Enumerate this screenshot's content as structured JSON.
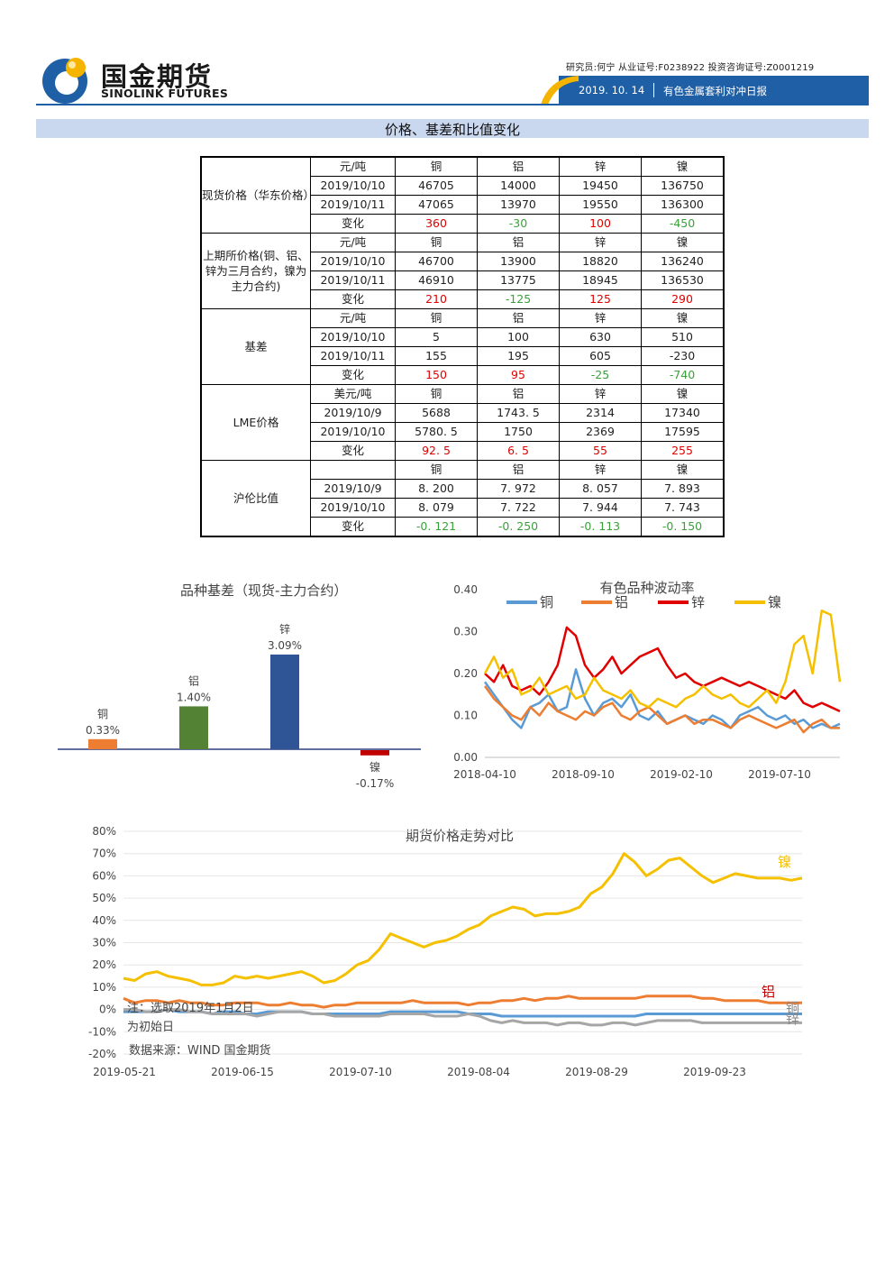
{
  "header": {
    "brand_cn": "国金期货",
    "brand_en": "SINOLINK FUTURES",
    "meta": "研究员:何宁  从业证号:F0238922  投资咨询证号:Z0001219",
    "date": "2019. 10. 14",
    "report_title": "有色金属套利对冲日报"
  },
  "section_title": "价格、基差和比值变化",
  "table": {
    "groups": [
      {
        "label": "现货价格（华东价格）",
        "rows": [
          {
            "c1": "元/吨",
            "v": [
              "铜",
              "铝",
              "锌",
              "镍"
            ]
          },
          {
            "c1": "2019/10/10",
            "v": [
              "46705",
              "14000",
              "19450",
              "136750"
            ]
          },
          {
            "c1": "2019/10/11",
            "v": [
              "47065",
              "13970",
              "19550",
              "136300"
            ]
          },
          {
            "c1": "变化",
            "v": [
              "360",
              "-30",
              "100",
              "-450"
            ]
          }
        ]
      },
      {
        "label": "上期所价格(铜、铝、锌为三月合约，镍为主力合约)",
        "rows": [
          {
            "c1": "元/吨",
            "v": [
              "铜",
              "铝",
              "锌",
              "镍"
            ]
          },
          {
            "c1": "2019/10/10",
            "v": [
              "46700",
              "13900",
              "18820",
              "136240"
            ]
          },
          {
            "c1": "2019/10/11",
            "v": [
              "46910",
              "13775",
              "18945",
              "136530"
            ]
          },
          {
            "c1": "变化",
            "v": [
              "210",
              "-125",
              "125",
              "290"
            ]
          }
        ]
      },
      {
        "label": "基差",
        "rows": [
          {
            "c1": "元/吨",
            "v": [
              "铜",
              "铝",
              "锌",
              "镍"
            ]
          },
          {
            "c1": "2019/10/10",
            "v": [
              "5",
              "100",
              "630",
              "510"
            ]
          },
          {
            "c1": "2019/10/11",
            "v": [
              "155",
              "195",
              "605",
              "-230"
            ]
          },
          {
            "c1": "变化",
            "v": [
              "150",
              "95",
              "-25",
              "-740"
            ]
          }
        ]
      },
      {
        "label": "LME价格",
        "rows": [
          {
            "c1": "美元/吨",
            "v": [
              "铜",
              "铝",
              "锌",
              "镍"
            ]
          },
          {
            "c1": "2019/10/9",
            "v": [
              "5688",
              "1743. 5",
              "2314",
              "17340"
            ]
          },
          {
            "c1": "2019/10/10",
            "v": [
              "5780. 5",
              "1750",
              "2369",
              "17595"
            ]
          },
          {
            "c1": "变化",
            "v": [
              "92. 5",
              "6. 5",
              "55",
              "255"
            ]
          }
        ]
      },
      {
        "label": "沪伦比值",
        "rows": [
          {
            "c1": "",
            "v": [
              "铜",
              "铝",
              "锌",
              "镍"
            ]
          },
          {
            "c1": "2019/10/9",
            "v": [
              "8. 200",
              "7. 972",
              "8. 057",
              "7. 893"
            ]
          },
          {
            "c1": "2019/10/10",
            "v": [
              "8. 079",
              "7. 722",
              "7. 944",
              "7. 743"
            ]
          },
          {
            "c1": "变化",
            "v": [
              "-0. 121",
              "-0. 250",
              "-0. 113",
              "-0. 150"
            ]
          }
        ]
      }
    ]
  },
  "chart_data": [
    {
      "type": "bar",
      "title": "品种基差（现货-主力合约）",
      "categories": [
        "铜",
        "铝",
        "锌",
        "镍"
      ],
      "values": [
        0.33,
        1.4,
        3.09,
        -0.17
      ],
      "value_labels": [
        "0.33%",
        "1.40%",
        "3.09%",
        "-0.17%"
      ],
      "colors": [
        "#ed7d31",
        "#548235",
        "#2f5597",
        "#c00000"
      ]
    },
    {
      "type": "line",
      "title": "有色品种波动率",
      "x_ticks": [
        "2018-04-10",
        "2018-09-10",
        "2019-02-10",
        "2019-07-10"
      ],
      "y_ticks": [
        "0.40",
        "0.30",
        "0.20",
        "0.10",
        "0.00"
      ],
      "ylim": [
        0,
        0.4
      ],
      "legend_placement": "top",
      "series": [
        {
          "name": "铜",
          "color": "#5b9bd5",
          "values": [
            0.18,
            0.15,
            0.12,
            0.09,
            0.07,
            0.12,
            0.13,
            0.15,
            0.11,
            0.12,
            0.21,
            0.14,
            0.1,
            0.13,
            0.14,
            0.12,
            0.15,
            0.1,
            0.09,
            0.11,
            0.08,
            0.09,
            0.1,
            0.09,
            0.08,
            0.1,
            0.09,
            0.07,
            0.1,
            0.11,
            0.12,
            0.1,
            0.09,
            0.1,
            0.08,
            0.09,
            0.07,
            0.08,
            0.07,
            0.08
          ]
        },
        {
          "name": "铝",
          "color": "#ed7d31",
          "values": [
            0.17,
            0.14,
            0.12,
            0.1,
            0.09,
            0.12,
            0.1,
            0.13,
            0.11,
            0.1,
            0.09,
            0.11,
            0.1,
            0.12,
            0.13,
            0.1,
            0.09,
            0.11,
            0.12,
            0.1,
            0.08,
            0.09,
            0.1,
            0.08,
            0.09,
            0.09,
            0.08,
            0.07,
            0.09,
            0.1,
            0.09,
            0.08,
            0.07,
            0.08,
            0.09,
            0.06,
            0.08,
            0.09,
            0.07,
            0.07
          ]
        },
        {
          "name": "锌",
          "color": "#e00000",
          "values": [
            0.2,
            0.18,
            0.22,
            0.17,
            0.16,
            0.17,
            0.15,
            0.18,
            0.22,
            0.31,
            0.29,
            0.22,
            0.19,
            0.21,
            0.24,
            0.2,
            0.22,
            0.24,
            0.25,
            0.26,
            0.22,
            0.19,
            0.2,
            0.18,
            0.17,
            0.18,
            0.19,
            0.18,
            0.17,
            0.18,
            0.17,
            0.16,
            0.15,
            0.14,
            0.16,
            0.13,
            0.12,
            0.13,
            0.12,
            0.11
          ]
        },
        {
          "name": "镍",
          "color": "#f5c000",
          "values": [
            0.2,
            0.24,
            0.19,
            0.21,
            0.15,
            0.16,
            0.19,
            0.15,
            0.16,
            0.17,
            0.14,
            0.15,
            0.19,
            0.16,
            0.15,
            0.14,
            0.16,
            0.13,
            0.12,
            0.14,
            0.13,
            0.12,
            0.14,
            0.15,
            0.17,
            0.15,
            0.14,
            0.15,
            0.13,
            0.12,
            0.14,
            0.16,
            0.13,
            0.18,
            0.27,
            0.29,
            0.2,
            0.35,
            0.34,
            0.18
          ]
        }
      ]
    },
    {
      "type": "line",
      "title": "期货价格走势对比",
      "x_ticks": [
        "2019-05-21",
        "2019-06-15",
        "2019-07-10",
        "2019-08-04",
        "2019-08-29",
        "2019-09-23"
      ],
      "y_ticks": [
        "80%",
        "70%",
        "60%",
        "50%",
        "40%",
        "30%",
        "20%",
        "10%",
        "0%",
        "-10%",
        "-20%"
      ],
      "ylim": [
        -20,
        80
      ],
      "series": [
        {
          "name": "镍",
          "color": "#f5c000",
          "values": [
            14,
            13,
            16,
            17,
            15,
            14,
            13,
            11,
            11,
            12,
            15,
            14,
            15,
            14,
            15,
            16,
            17,
            15,
            12,
            13,
            16,
            20,
            22,
            27,
            34,
            32,
            30,
            28,
            30,
            31,
            33,
            36,
            38,
            42,
            44,
            46,
            45,
            42,
            43,
            43,
            44,
            46,
            52,
            55,
            61,
            70,
            66,
            60,
            63,
            67,
            68,
            64,
            60,
            57,
            59,
            61,
            60,
            59,
            59,
            59,
            58,
            59
          ]
        },
        {
          "name": "铝",
          "color": "#ed7d31",
          "values": [
            5,
            3,
            4,
            4,
            3,
            4,
            3,
            3,
            2,
            2,
            3,
            3,
            3,
            2,
            2,
            3,
            2,
            2,
            1,
            2,
            2,
            3,
            3,
            3,
            3,
            3,
            4,
            3,
            3,
            3,
            3,
            2,
            3,
            3,
            4,
            4,
            5,
            4,
            5,
            5,
            6,
            5,
            5,
            5,
            5,
            5,
            5,
            6,
            6,
            6,
            6,
            6,
            5,
            5,
            4,
            4,
            4,
            4,
            3,
            3,
            3,
            3
          ]
        },
        {
          "name": "铜",
          "color": "#5b9bd5",
          "values": [
            -1,
            -1,
            -1,
            -1,
            0,
            -1,
            -1,
            -1,
            -2,
            -1,
            -1,
            -2,
            -2,
            -1,
            -1,
            -1,
            -1,
            -2,
            -2,
            -2,
            -2,
            -2,
            -2,
            -2,
            -1,
            -1,
            -1,
            -1,
            -1,
            -1,
            -1,
            -2,
            -2,
            -2,
            -3,
            -3,
            -3,
            -3,
            -3,
            -3,
            -3,
            -3,
            -3,
            -3,
            -3,
            -3,
            -3,
            -2,
            -2,
            -2,
            -2,
            -2,
            -2,
            -2,
            -2,
            -2,
            -2,
            -2,
            -2,
            -2,
            -2,
            -2
          ]
        },
        {
          "name": "锌",
          "color": "#a6a6a6",
          "values": [
            0,
            0,
            -1,
            -1,
            0,
            0,
            -1,
            -1,
            -2,
            -2,
            -2,
            -2,
            -3,
            -2,
            -1,
            -1,
            -1,
            -2,
            -2,
            -3,
            -3,
            -3,
            -3,
            -3,
            -2,
            -2,
            -2,
            -2,
            -3,
            -3,
            -3,
            -2,
            -3,
            -5,
            -6,
            -5,
            -6,
            -6,
            -6,
            -7,
            -6,
            -6,
            -7,
            -7,
            -6,
            -6,
            -7,
            -6,
            -5,
            -5,
            -5,
            -5,
            -6,
            -6,
            -6,
            -6,
            -6,
            -6,
            -6,
            -6,
            -6,
            -6
          ]
        }
      ],
      "series_labels": [
        "镍",
        "铝",
        "铜",
        "锌"
      ]
    }
  ],
  "notes": {
    "note1": "注：选取2019年1月2日",
    "note2": "为初始日",
    "source": "数据来源：WIND 国金期货"
  }
}
